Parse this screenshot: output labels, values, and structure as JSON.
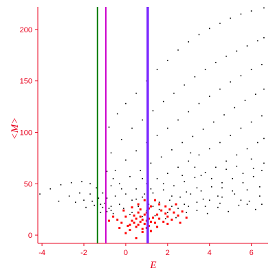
{
  "chart_data": {
    "type": "scatter",
    "title": "",
    "xlabel": "E",
    "ylabel": "<M>",
    "xlim": [
      -4.2,
      6.8
    ],
    "ylim": [
      -8,
      222
    ],
    "xticks": [
      -4,
      -2,
      0,
      2,
      4,
      6
    ],
    "yticks": [
      0,
      50,
      100,
      150,
      200
    ],
    "grid": false,
    "legend": "none",
    "axis_color": "#e8001c",
    "vertical_lines": [
      {
        "x": -1.35,
        "color": "#007a00"
      },
      {
        "x": -0.95,
        "color": "#cc00cc"
      },
      {
        "x": 1.05,
        "color": "#7a28ff"
      }
    ],
    "series": [
      {
        "color": "#000000",
        "values": [
          [
            -4.1,
            40
          ],
          [
            -3.6,
            45
          ],
          [
            -3.1,
            49
          ],
          [
            -2.6,
            51
          ],
          [
            -2.1,
            52
          ],
          [
            -1.7,
            50
          ],
          [
            -1.4,
            46
          ],
          [
            -1.1,
            41
          ],
          [
            -0.9,
            36
          ],
          [
            -0.8,
            105
          ],
          [
            -0.4,
            118
          ],
          [
            0,
            128
          ],
          [
            0.5,
            138
          ],
          [
            1,
            150
          ],
          [
            1.5,
            161
          ],
          [
            2,
            170
          ],
          [
            2.5,
            180
          ],
          [
            3,
            188
          ],
          [
            3.5,
            195
          ],
          [
            4,
            201
          ],
          [
            4.5,
            206
          ],
          [
            5,
            211
          ],
          [
            5.5,
            215
          ],
          [
            6,
            218
          ],
          [
            6.6,
            221
          ],
          [
            -3.2,
            33
          ],
          [
            -2.7,
            38
          ],
          [
            -2.2,
            41
          ],
          [
            -1.7,
            40
          ],
          [
            -1.3,
            36
          ],
          [
            -1,
            31
          ],
          [
            -0.7,
            28
          ],
          [
            -0.7,
            80
          ],
          [
            -0.2,
            93
          ],
          [
            0.3,
            104
          ],
          [
            0.8,
            112
          ],
          [
            1.3,
            121
          ],
          [
            1.8,
            130
          ],
          [
            2.3,
            138
          ],
          [
            2.8,
            146
          ],
          [
            3.3,
            154
          ],
          [
            3.8,
            161
          ],
          [
            4.3,
            168
          ],
          [
            4.8,
            174
          ],
          [
            5.3,
            179
          ],
          [
            5.8,
            184
          ],
          [
            6.3,
            189
          ],
          [
            6.6,
            192
          ],
          [
            -2.4,
            32
          ],
          [
            -2,
            34
          ],
          [
            -1.6,
            33
          ],
          [
            -1.2,
            30
          ],
          [
            -0.8,
            26
          ],
          [
            -0.5,
            63
          ],
          [
            0,
            73
          ],
          [
            0.5,
            82
          ],
          [
            1,
            90
          ],
          [
            1.5,
            97
          ],
          [
            2,
            104
          ],
          [
            2.5,
            112
          ],
          [
            3,
            120
          ],
          [
            3.5,
            128
          ],
          [
            4,
            135
          ],
          [
            4.5,
            142
          ],
          [
            5,
            149
          ],
          [
            5.5,
            155
          ],
          [
            6,
            161
          ],
          [
            6.5,
            166
          ],
          [
            -1.9,
            27
          ],
          [
            -1.5,
            29
          ],
          [
            -1.1,
            27
          ],
          [
            -0.7,
            24
          ],
          [
            -0.3,
            50
          ],
          [
            0.2,
            57
          ],
          [
            0.7,
            63
          ],
          [
            1.2,
            70
          ],
          [
            1.7,
            76
          ],
          [
            2.2,
            83
          ],
          [
            2.7,
            90
          ],
          [
            3.2,
            96
          ],
          [
            3.7,
            103
          ],
          [
            4.2,
            110
          ],
          [
            4.7,
            117
          ],
          [
            5.2,
            124
          ],
          [
            5.7,
            131
          ],
          [
            6.2,
            137
          ],
          [
            6.6,
            142
          ],
          [
            -1.2,
            22
          ],
          [
            -0.9,
            23
          ],
          [
            -0.6,
            21
          ],
          [
            0,
            40
          ],
          [
            0.5,
            45
          ],
          [
            1,
            50
          ],
          [
            1.5,
            55
          ],
          [
            2,
            60
          ],
          [
            2.5,
            66
          ],
          [
            3,
            72
          ],
          [
            3.5,
            78
          ],
          [
            4,
            84
          ],
          [
            4.5,
            90
          ],
          [
            5,
            97
          ],
          [
            5.5,
            104
          ],
          [
            6,
            110
          ],
          [
            6.5,
            116
          ],
          [
            0.3,
            34
          ],
          [
            0.8,
            37
          ],
          [
            1.3,
            41
          ],
          [
            1.8,
            44
          ],
          [
            2.3,
            48
          ],
          [
            2.8,
            52
          ],
          [
            3.3,
            56
          ],
          [
            3.8,
            61
          ],
          [
            4.3,
            66
          ],
          [
            4.8,
            72
          ],
          [
            5.3,
            78
          ],
          [
            5.8,
            84
          ],
          [
            6.3,
            90
          ],
          [
            6.6,
            94
          ],
          [
            0.6,
            28
          ],
          [
            1.1,
            30
          ],
          [
            1.6,
            32
          ],
          [
            2.1,
            34
          ],
          [
            2.6,
            37
          ],
          [
            3.1,
            40
          ],
          [
            3.6,
            43
          ],
          [
            4.1,
            47
          ],
          [
            4.6,
            51
          ],
          [
            5.1,
            55
          ],
          [
            5.6,
            60
          ],
          [
            6.1,
            65
          ],
          [
            6.6,
            70
          ],
          [
            0.2,
            20
          ],
          [
            0.6,
            22
          ],
          [
            1,
            24
          ],
          [
            1.6,
            25
          ],
          [
            2.2,
            28
          ],
          [
            2.8,
            30
          ],
          [
            3.4,
            32
          ],
          [
            4,
            34
          ],
          [
            4.6,
            37
          ],
          [
            5.2,
            40
          ],
          [
            5.8,
            44
          ],
          [
            6.4,
            47
          ],
          [
            -0.9,
            62
          ],
          [
            -0.7,
            48
          ],
          [
            -0.5,
            38
          ],
          [
            -0.3,
            30
          ],
          [
            -0.1,
            26
          ],
          [
            0.3,
            22
          ],
          [
            0.8,
            18
          ],
          [
            1.4,
            19
          ],
          [
            1.9,
            16
          ],
          [
            2.4,
            17
          ],
          [
            2.9,
            22
          ],
          [
            3.4,
            24
          ],
          [
            3.9,
            21
          ],
          [
            4.4,
            27
          ],
          [
            4.9,
            23
          ],
          [
            5.4,
            29
          ],
          [
            5.9,
            33
          ],
          [
            6.4,
            38
          ],
          [
            3.1,
            80
          ],
          [
            3.3,
            66
          ],
          [
            3.6,
            58
          ],
          [
            4.1,
            55
          ],
          [
            4.6,
            46
          ],
          [
            5.1,
            43
          ],
          [
            5.6,
            51
          ],
          [
            6.1,
            57
          ],
          [
            6.5,
            63
          ],
          [
            4.4,
            38
          ],
          [
            5.8,
            30
          ],
          [
            3.7,
            35
          ],
          [
            2.9,
            42
          ],
          [
            2.2,
            38
          ],
          [
            1.8,
            50
          ],
          [
            1.2,
            45
          ],
          [
            0.8,
            55
          ],
          [
            2.5,
            26
          ],
          [
            3.0,
            28
          ],
          [
            3.8,
            28
          ],
          [
            4.5,
            31
          ],
          [
            5.5,
            34
          ],
          [
            6.2,
            25
          ],
          [
            6.5,
            30
          ],
          [
            2.0,
            22
          ],
          [
            1.3,
            28
          ],
          [
            0.9,
            40
          ],
          [
            0.5,
            35
          ],
          [
            -0.2,
            45
          ],
          [
            -0.6,
            55
          ],
          [
            2.7,
            58
          ],
          [
            3.4,
            46
          ],
          [
            4.8,
            64
          ],
          [
            5.3,
            67
          ],
          [
            6.0,
            74
          ]
        ]
      },
      {
        "color": "#ff0000",
        "values": [
          [
            0.3,
            14
          ],
          [
            0.4,
            12
          ],
          [
            0.5,
            16
          ],
          [
            0.6,
            10
          ],
          [
            0.7,
            13
          ],
          [
            0.8,
            15
          ],
          [
            0.9,
            11
          ],
          [
            1,
            14
          ],
          [
            1.1,
            9
          ],
          [
            1.2,
            13
          ],
          [
            1.3,
            17
          ],
          [
            0.5,
            8
          ],
          [
            0.7,
            18
          ],
          [
            0.9,
            20
          ],
          [
            1,
            7
          ],
          [
            1.1,
            16
          ],
          [
            0.2,
            10
          ],
          [
            0.4,
            19
          ],
          [
            0.6,
            22
          ],
          [
            0.8,
            6
          ],
          [
            -0.2,
            12
          ],
          [
            -0.4,
            15
          ],
          [
            0,
            18
          ],
          [
            0.1,
            9
          ],
          [
            1.4,
            12
          ],
          [
            1.5,
            20
          ],
          [
            1.6,
            16
          ],
          [
            1.7,
            24
          ],
          [
            1.8,
            13
          ],
          [
            1.9,
            21
          ],
          [
            2,
            18
          ],
          [
            2.1,
            25
          ],
          [
            2.2,
            15
          ],
          [
            2.3,
            22
          ],
          [
            2.5,
            19
          ],
          [
            2.7,
            23
          ],
          [
            1.6,
            30
          ],
          [
            1.4,
            34
          ],
          [
            1.2,
            28
          ],
          [
            1.9,
            28
          ],
          [
            -0.8,
            14
          ],
          [
            -0.6,
            18
          ],
          [
            -0.1,
            24
          ],
          [
            0.3,
            27
          ],
          [
            0.6,
            30
          ],
          [
            0.9,
            34
          ],
          [
            1.1,
            26
          ],
          [
            2.4,
            30
          ],
          [
            2.9,
            17
          ],
          [
            0.5,
            -3
          ],
          [
            0.8,
            3
          ],
          [
            0.2,
            5
          ],
          [
            -0.3,
            7
          ],
          [
            1.2,
            4
          ],
          [
            1.5,
            8
          ],
          [
            2.0,
            11
          ],
          [
            2.6,
            12
          ],
          [
            0.0,
            2
          ],
          [
            0.7,
            25
          ],
          [
            1.0,
            22
          ]
        ]
      }
    ]
  }
}
